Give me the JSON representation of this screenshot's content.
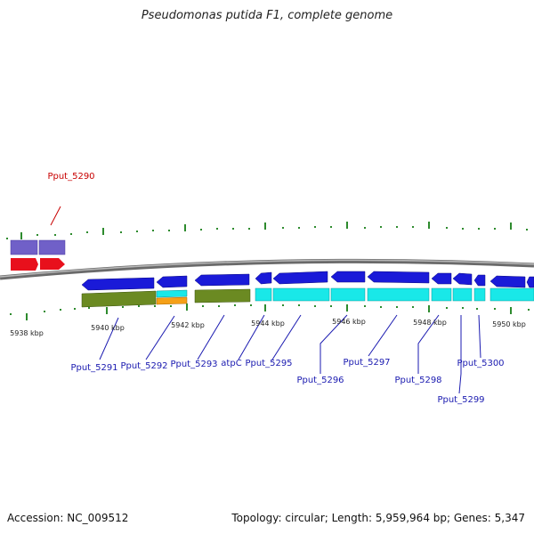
{
  "title": "Pseudomonas putida F1, complete genome",
  "footer": {
    "accession": "Accession: NC_009512",
    "summary": "Topology: circular; Length: 5,959,964 bp; Genes: 5,347"
  },
  "colors": {
    "backbone": "#888888",
    "tick": "#2e8b2e",
    "gene_blue": "#1a1ad8",
    "gene_red": "#e8101c",
    "gene_purple": "#7060c8",
    "cds_cyan": "#19e8e8",
    "cds_olive": "#6b8a22",
    "cds_orange": "#f5a017",
    "label_blue": "#1a1ab0",
    "label_red": "#c80000"
  },
  "kbp_labels": [
    "5938 kbp",
    "5940 kbp",
    "5942 kbp",
    "5944 kbp",
    "5946 kbp",
    "5948 kbp",
    "5950 kbp"
  ],
  "gene_labels": [
    {
      "text": "Pput_5290",
      "color": "red"
    },
    {
      "text": "Pput_5291",
      "color": "blue"
    },
    {
      "text": "Pput_5292",
      "color": "blue"
    },
    {
      "text": "Pput_5293",
      "color": "blue"
    },
    {
      "text": "atpC",
      "color": "blue"
    },
    {
      "text": "Pput_5295",
      "color": "blue"
    },
    {
      "text": "Pput_5296",
      "color": "blue"
    },
    {
      "text": "Pput_5297",
      "color": "blue"
    },
    {
      "text": "Pput_5298",
      "color": "blue"
    },
    {
      "text": "Pput_5299",
      "color": "blue"
    },
    {
      "text": "Pput_5300",
      "color": "blue"
    }
  ]
}
